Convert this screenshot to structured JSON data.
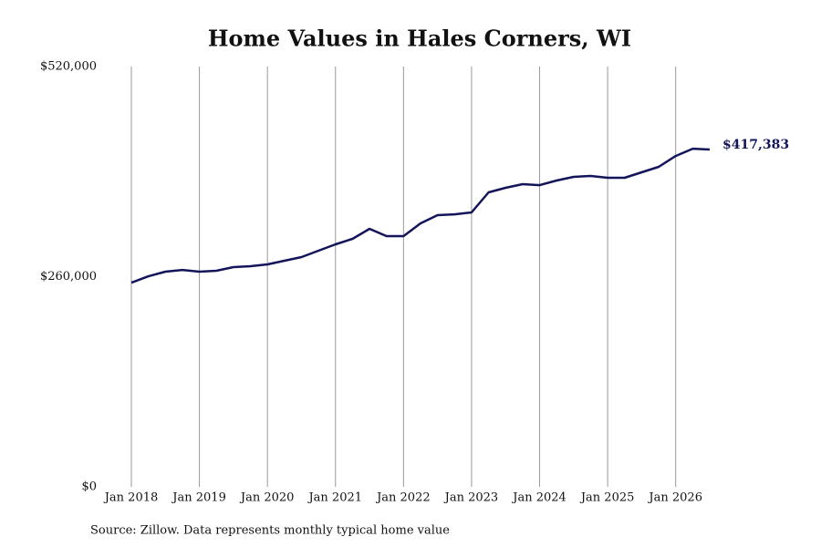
{
  "chart_data": {
    "type": "line",
    "title": "Home Values in Hales Corners, WI",
    "source": "Source: Zillow. Data represents monthly typical home value",
    "x": [
      "2018-01",
      "2018-04",
      "2018-07",
      "2018-10",
      "2019-01",
      "2019-04",
      "2019-07",
      "2019-10",
      "2020-01",
      "2020-04",
      "2020-07",
      "2020-10",
      "2021-01",
      "2021-04",
      "2021-07",
      "2021-10",
      "2022-01",
      "2022-04",
      "2022-07",
      "2022-10",
      "2023-01",
      "2023-04",
      "2023-07",
      "2023-10",
      "2024-01",
      "2024-04",
      "2024-07",
      "2024-10",
      "2025-01",
      "2025-04",
      "2025-07",
      "2025-10",
      "2026-01",
      "2026-04",
      "2026-07"
    ],
    "series": [
      {
        "name": "Home value",
        "color": "#14145a",
        "values": [
          252600,
          260500,
          266200,
          268400,
          266200,
          267300,
          271800,
          273000,
          275200,
          279700,
          284200,
          292100,
          300000,
          306800,
          319200,
          310200,
          310200,
          326000,
          336100,
          337200,
          339500,
          364300,
          370000,
          374500,
          373300,
          379000,
          383500,
          384600,
          382400,
          382400,
          389100,
          395900,
          409400,
          418400,
          417383
        ]
      }
    ],
    "last_value_label": "$417,383",
    "xlim": [
      "2018-01",
      "2026-07"
    ],
    "xticks": [
      {
        "value": "2018-01",
        "label": "Jan 2018"
      },
      {
        "value": "2019-01",
        "label": "Jan 2019"
      },
      {
        "value": "2020-01",
        "label": "Jan 2020"
      },
      {
        "value": "2021-01",
        "label": "Jan 2021"
      },
      {
        "value": "2022-01",
        "label": "Jan 2022"
      },
      {
        "value": "2023-01",
        "label": "Jan 2023"
      },
      {
        "value": "2024-01",
        "label": "Jan 2024"
      },
      {
        "value": "2025-01",
        "label": "Jan 2025"
      },
      {
        "value": "2026-01",
        "label": "Jan 2026"
      }
    ],
    "ylim": [
      0,
      520000
    ],
    "yticks": [
      {
        "value": 0,
        "label": "$0"
      },
      {
        "value": 260000,
        "label": "$260,000"
      },
      {
        "value": 520000,
        "label": "$520,000"
      }
    ],
    "grid": "x"
  }
}
